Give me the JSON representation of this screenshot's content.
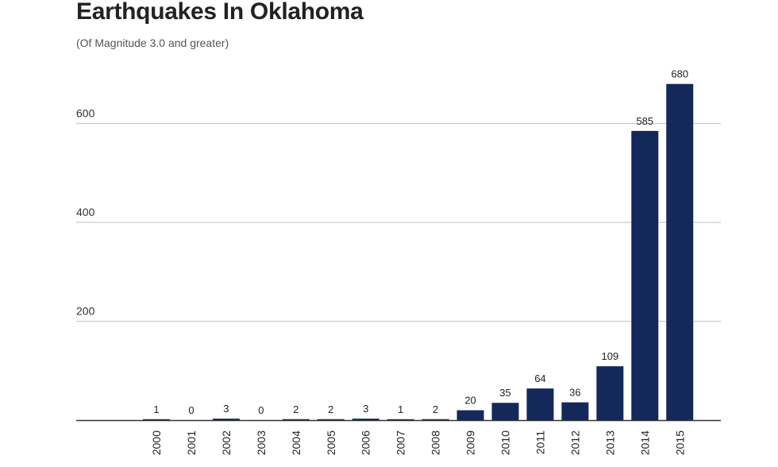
{
  "chart_data": {
    "type": "bar",
    "title": "Earthquakes In Oklahoma",
    "subtitle": "(Of Magnitude 3.0 and greater)",
    "xlabel": "",
    "ylabel": "",
    "categories": [
      "2000",
      "2001",
      "2002",
      "2003",
      "2004",
      "2005",
      "2006",
      "2007",
      "2008",
      "2009",
      "2010",
      "2011",
      "2012",
      "2013",
      "2014",
      "2015"
    ],
    "values": [
      1,
      0,
      3,
      0,
      2,
      2,
      3,
      1,
      2,
      20,
      35,
      64,
      36,
      109,
      585,
      680
    ],
    "data_labels": [
      "1",
      "0",
      "3",
      "0",
      "2",
      "2",
      "3",
      "1",
      "2",
      "20",
      "35",
      "64",
      "36",
      "109",
      "585",
      "680"
    ],
    "ylim": [
      0,
      600
    ],
    "yticks": [
      {
        "value": 200,
        "label": "200"
      },
      {
        "value": 400,
        "label": "400"
      },
      {
        "value": 600,
        "label": "600"
      }
    ],
    "bar_color": "#14295a",
    "grid_color": "#cccccc",
    "grid": true,
    "legend": "none"
  }
}
